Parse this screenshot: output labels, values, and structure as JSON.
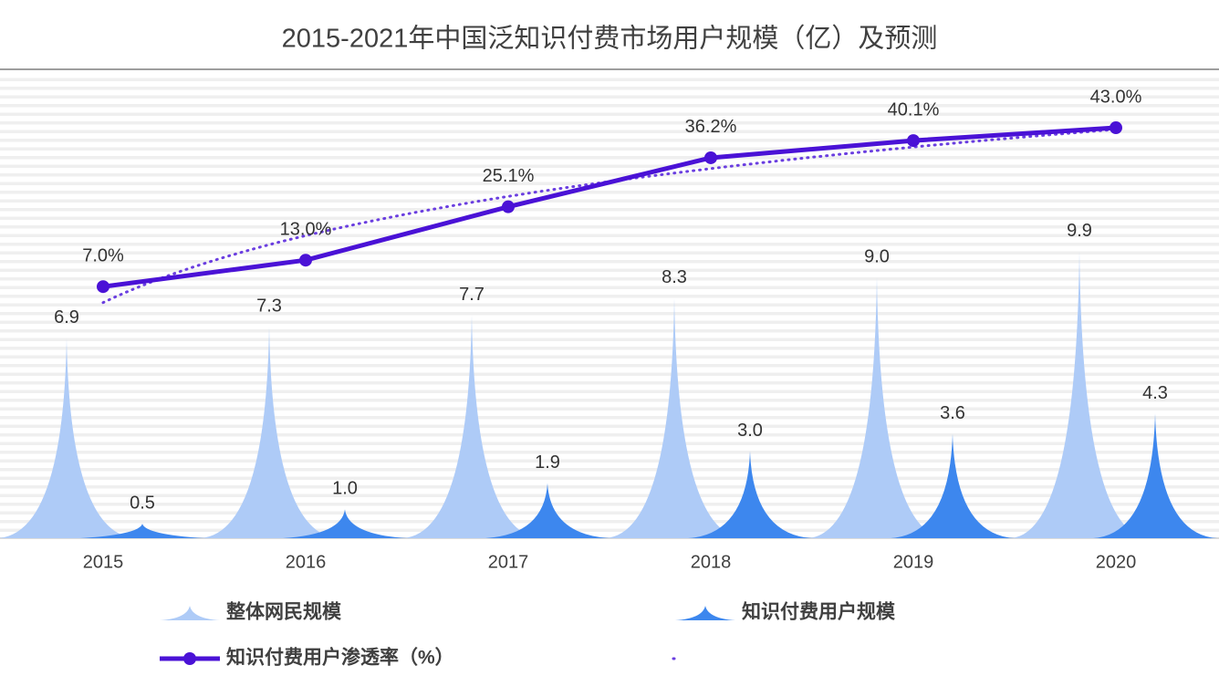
{
  "chart_data": {
    "type": "combo",
    "title": "2015-2021年中国泛知识付费市场用户规模（亿）及预测",
    "categories": [
      "2015",
      "2016",
      "2017",
      "2018",
      "2019",
      "2020"
    ],
    "series": [
      {
        "name": "整体网民规模",
        "type": "spike",
        "color": "#aecbf7",
        "values": [
          6.9,
          7.3,
          7.7,
          8.3,
          9.0,
          9.9
        ],
        "value_labels": [
          "6.9",
          "7.3",
          "7.7",
          "8.3",
          "9.0",
          "9.9"
        ]
      },
      {
        "name": "知识付费用户规模",
        "type": "spike",
        "color": "#3d87ee",
        "values": [
          0.5,
          1.0,
          1.9,
          3.0,
          3.6,
          4.3
        ],
        "value_labels": [
          "0.5",
          "1.0",
          "1.9",
          "3.0",
          "3.6",
          "4.3"
        ]
      },
      {
        "name": "知识付费用户渗透率（%）",
        "type": "line",
        "axis": "y2",
        "color": "#4a12d6",
        "values": [
          7.0,
          13.0,
          25.1,
          36.2,
          40.1,
          43.0
        ],
        "value_labels": [
          "7.0%",
          "13.0%",
          "25.1%",
          "36.2%",
          "40.1%",
          "43.0%"
        ],
        "trendline": "logarithmic"
      }
    ],
    "ylim": [
      0,
      16
    ],
    "y2lim": [
      -50,
      55
    ]
  }
}
